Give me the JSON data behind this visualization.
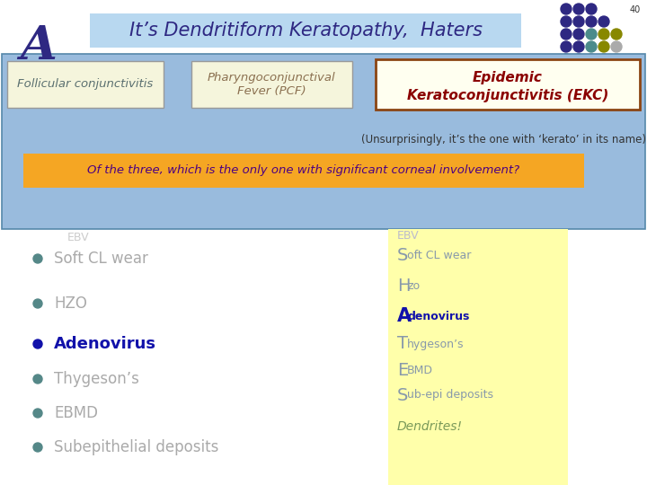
{
  "slide_num": "40",
  "letter": "A",
  "title": "It’s Dendritiform Keratopathy,  Haters",
  "title_bg": "#B8D8F0",
  "bg_color": "#ffffff",
  "blue_panel_bg": "#99BBDD",
  "box1_label": "Follicular conjunctivitis",
  "box1_bg": "#F5F5DC",
  "box1_border": "#999999",
  "box2_label": "Pharyngoconjunctival\nFever (PCF)",
  "box2_bg": "#F5F5DC",
  "box2_border": "#999999",
  "box3_bg": "#FFFFF0",
  "box3_border": "#8B4513",
  "box3_text_color": "#8B0000",
  "unsurprising_text": "(Unsurprisingly, it’s the one with ‘kerato’ in its name)",
  "question_text": "Of the three, which is the only one with significant corneal involvement?",
  "question_bg": "#F5A623",
  "question_text_color": "#4B0082",
  "left_items": [
    "Soft CL wear",
    "HZO",
    "Adenovirus",
    "Thygeson’s",
    "EBMD",
    "Subepithelial deposits"
  ],
  "left_bold": [
    false,
    false,
    true,
    false,
    false,
    false
  ],
  "left_color": "#AAAAAA",
  "left_bold_color": "#1111AA",
  "right_panel_bg": "#FFFFAA",
  "right_italic_color": "#7A9A5A",
  "right_bold_color": "#1111AA",
  "right_color": "#8899AA",
  "dot_grid": [
    [
      "#2E2882",
      "#2E2882",
      "#2E2882",
      null,
      null
    ],
    [
      "#2E2882",
      "#2E2882",
      "#2E2882",
      "#2E2882",
      null
    ],
    [
      "#2E2882",
      "#2E2882",
      "#4B8B8B",
      "#888800",
      "#888800"
    ],
    [
      "#2E2882",
      "#2E2882",
      "#4B8B8B",
      "#888800",
      "#AAAAAA"
    ],
    [
      "#2E2882",
      "#2E2882",
      "#888888",
      "#888800",
      "#AAAAAA"
    ]
  ]
}
